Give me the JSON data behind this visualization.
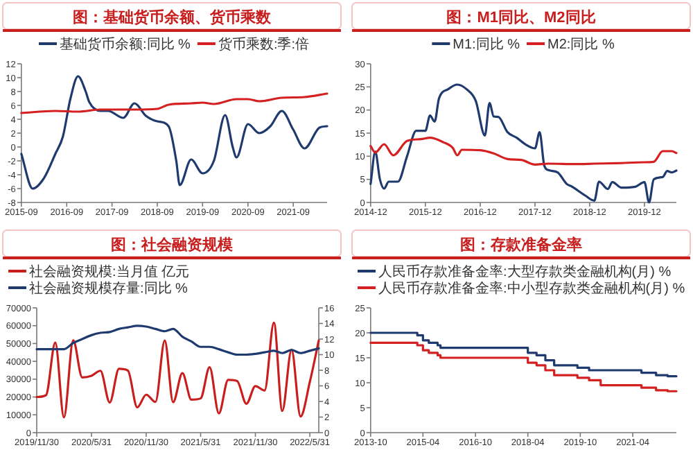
{
  "chart_data": [
    {
      "type": "line",
      "title": "图：基础货币余额、货币乘数",
      "legend": "top",
      "grid": false,
      "xlim": [
        "2015-09",
        "2022-06"
      ],
      "xticks": [
        {
          "value": "2015-09",
          "label": "2015-09"
        },
        {
          "value": "2016-09",
          "label": "2016-09"
        },
        {
          "value": "2017-09",
          "label": "2017-09"
        },
        {
          "value": "2018-09",
          "label": "2018-09"
        },
        {
          "value": "2019-09",
          "label": "2019-09"
        },
        {
          "value": "2020-09",
          "label": "2020-09"
        },
        {
          "value": "2021-09",
          "label": "2021-09"
        }
      ],
      "ylim": [
        -8,
        12
      ],
      "yticks": [
        -8,
        -6,
        -4,
        -2,
        0,
        2,
        4,
        6,
        8,
        10,
        12
      ],
      "series": [
        {
          "name": "基础货币余额:同比 %",
          "color": "#1f3a6e",
          "x": [
            "2015-09",
            "2015-12",
            "2016-03",
            "2016-06",
            "2016-08",
            "2016-10",
            "2016-12",
            "2017-02",
            "2017-03",
            "2017-06",
            "2017-08",
            "2017-12",
            "2018-03",
            "2018-06",
            "2018-09",
            "2018-12",
            "2019-02",
            "2019-03",
            "2019-06",
            "2019-09",
            "2019-12",
            "2020-03",
            "2020-05",
            "2020-06",
            "2020-09",
            "2020-12",
            "2021-03",
            "2021-06",
            "2021-09",
            "2021-12",
            "2022-04",
            "2022-06"
          ],
          "values": [
            -1,
            -6,
            -4.5,
            -1,
            1.5,
            7,
            10.2,
            8,
            6.5,
            5.2,
            5.2,
            4.2,
            6.3,
            4.5,
            3.7,
            3,
            -2,
            -5.5,
            -1.8,
            -3.8,
            -2,
            4.6,
            0,
            -1.5,
            3.3,
            2,
            3,
            5.2,
            2.5,
            -0.2,
            2.8,
            3
          ]
        },
        {
          "name": "货币乘数:季:倍",
          "color": "#d42020",
          "x": [
            "2015-09",
            "2016-06",
            "2016-12",
            "2017-06",
            "2018-03",
            "2018-09",
            "2018-12",
            "2019-06",
            "2019-09",
            "2019-12",
            "2020-06",
            "2020-09",
            "2020-12",
            "2021-06",
            "2021-12",
            "2022-06"
          ],
          "values": [
            4.9,
            5.2,
            5.1,
            5.4,
            5.4,
            5.5,
            6.1,
            6.3,
            6.4,
            6.2,
            6.9,
            6.9,
            6.6,
            7.1,
            7.2,
            7.7
          ]
        }
      ]
    },
    {
      "type": "line",
      "title": "图：M1同比、M2同比",
      "legend": "top",
      "grid": false,
      "xlim": [
        "2014-12",
        "2020-07"
      ],
      "xticks": [
        {
          "value": "2014-12",
          "label": "2014-12"
        },
        {
          "value": "2015-12",
          "label": "2015-12"
        },
        {
          "value": "2016-12",
          "label": "2016-12"
        },
        {
          "value": "2017-12",
          "label": "2017-12"
        },
        {
          "value": "2018-12",
          "label": "2018-12"
        },
        {
          "value": "2019-12",
          "label": "2019-12"
        }
      ],
      "ylim": [
        0,
        30
      ],
      "yticks": [
        0,
        5,
        10,
        15,
        20,
        25,
        30
      ],
      "series": [
        {
          "name": "M1:同比 %",
          "color": "#1f3a6e",
          "x": [
            "2014-12",
            "2015-01",
            "2015-02",
            "2015-03",
            "2015-04",
            "2015-06",
            "2015-08",
            "2015-10",
            "2015-12",
            "2016-01",
            "2016-02",
            "2016-03",
            "2016-05",
            "2016-07",
            "2016-09",
            "2016-11",
            "2017-01",
            "2017-02",
            "2017-03",
            "2017-04",
            "2017-06",
            "2017-08",
            "2017-10",
            "2017-12",
            "2018-01",
            "2018-02",
            "2018-03",
            "2018-05",
            "2018-07",
            "2018-08",
            "2018-11",
            "2019-01",
            "2019-02",
            "2019-04",
            "2019-05",
            "2019-07",
            "2019-10",
            "2019-12",
            "2020-01",
            "2020-02",
            "2020-04",
            "2020-05",
            "2020-06",
            "2020-07"
          ],
          "values": [
            4,
            11,
            5,
            3,
            4.5,
            4.5,
            10,
            15.5,
            15.5,
            18.8,
            17.5,
            22.5,
            24.5,
            25.5,
            24.5,
            22,
            14.5,
            21.5,
            18.6,
            18.5,
            15.2,
            14,
            12.5,
            11.7,
            15.2,
            8,
            7,
            6.5,
            4,
            3.5,
            1.5,
            0.4,
            4.5,
            2.9,
            4.4,
            3.2,
            3.4,
            4.4,
            0,
            5,
            5.5,
            6.8,
            6.5,
            6.9
          ]
        },
        {
          "name": "M2:同比 %",
          "color": "#d42020",
          "x": [
            "2014-12",
            "2015-01",
            "2015-03",
            "2015-05",
            "2015-08",
            "2015-11",
            "2016-01",
            "2016-04",
            "2016-06",
            "2016-07",
            "2016-08",
            "2016-12",
            "2017-03",
            "2017-06",
            "2017-09",
            "2017-12",
            "2018-03",
            "2018-09",
            "2019-01",
            "2019-06",
            "2019-12",
            "2020-02",
            "2020-04",
            "2020-06",
            "2020-07"
          ],
          "values": [
            12.2,
            10.8,
            12.6,
            10.2,
            13.3,
            13.7,
            14,
            13,
            11.8,
            10.2,
            11.4,
            11.3,
            10.6,
            9.4,
            9.2,
            8.2,
            8.4,
            8.3,
            8.4,
            8.5,
            8.7,
            8.8,
            11.1,
            11.1,
            10.7
          ]
        }
      ]
    },
    {
      "type": "line",
      "title": "图：社会融资规模",
      "legend": "top",
      "grid": false,
      "xlim": [
        "2019-11-30",
        "2022-06-30"
      ],
      "xticks": [
        {
          "value": "2019-11-30",
          "label": "2019/11/30"
        },
        {
          "value": "2020-05-31",
          "label": "2020/5/31"
        },
        {
          "value": "2020-11-30",
          "label": "2020/11/30"
        },
        {
          "value": "2021-05-31",
          "label": "2021/5/31"
        },
        {
          "value": "2021-11-30",
          "label": "2021/11/30"
        },
        {
          "value": "2022-05-31",
          "label": "2022/5/31"
        }
      ],
      "ylim": [
        0,
        70000
      ],
      "yticks": [
        0,
        10000,
        20000,
        30000,
        40000,
        50000,
        60000,
        70000
      ],
      "y2lim": [
        0,
        16
      ],
      "y2ticks": [
        0,
        2,
        4,
        6,
        8,
        10,
        12,
        14,
        16
      ],
      "x": [
        "2019-11-30",
        "2019-12-31",
        "2020-01-31",
        "2020-02-29",
        "2020-03-31",
        "2020-04-30",
        "2020-05-31",
        "2020-06-30",
        "2020-07-31",
        "2020-08-31",
        "2020-09-30",
        "2020-10-31",
        "2020-11-30",
        "2020-12-31",
        "2021-01-31",
        "2021-02-28",
        "2021-03-31",
        "2021-04-30",
        "2021-05-31",
        "2021-06-30",
        "2021-07-31",
        "2021-08-31",
        "2021-09-30",
        "2021-10-31",
        "2021-11-30",
        "2021-12-31",
        "2022-01-31",
        "2022-02-28",
        "2022-03-31",
        "2022-04-30",
        "2022-05-31",
        "2022-06-30"
      ],
      "series": [
        {
          "name": "社会融资规模:当月值 亿元",
          "color": "#c81e1e",
          "values": [
            20000,
            21000,
            50500,
            8600,
            51800,
            31000,
            31900,
            34700,
            16900,
            35800,
            34800,
            14200,
            21300,
            17200,
            51700,
            17100,
            33400,
            18500,
            19200,
            36700,
            10800,
            29600,
            29000,
            16200,
            26100,
            23700,
            61700,
            12200,
            46500,
            9100,
            28400,
            51700
          ]
        },
        {
          "name": "社会融资规模存量:同比 %",
          "color": "#1f3a6e",
          "axis": "y2",
          "values": [
            10.7,
            10.7,
            10.7,
            10.7,
            11.5,
            12,
            12.5,
            12.8,
            12.9,
            13.3,
            13.5,
            13.7,
            13.6,
            13.3,
            13,
            13.3,
            12.3,
            11.7,
            11,
            11,
            10.7,
            10.3,
            10,
            10,
            10.1,
            10.3,
            10.5,
            10.2,
            10.6,
            10.2,
            10.5,
            10.8
          ]
        }
      ]
    },
    {
      "type": "step",
      "title": "图：存款准备金率",
      "legend": "top",
      "grid": false,
      "xlim": [
        "2013-10",
        "2022-07"
      ],
      "xticks": [
        {
          "value": "2013-10",
          "label": "2013-10"
        },
        {
          "value": "2015-04",
          "label": "2015-04"
        },
        {
          "value": "2016-10",
          "label": "2016-10"
        },
        {
          "value": "2018-04",
          "label": "2018-04"
        },
        {
          "value": "2019-10",
          "label": "2019-10"
        },
        {
          "value": "2021-04",
          "label": "2021-04"
        }
      ],
      "ylim": [
        0,
        25
      ],
      "yticks": [
        0,
        5,
        10,
        15,
        20,
        25
      ],
      "series": [
        {
          "name": "人民币存款准备金率:大型存款类金融机构(月) %",
          "color": "#1f3a6e",
          "x": [
            "2013-10",
            "2015-02",
            "2015-04",
            "2015-06",
            "2015-09",
            "2015-10",
            "2018-04",
            "2018-07",
            "2018-10",
            "2019-01",
            "2019-09",
            "2020-01",
            "2021-07",
            "2021-12",
            "2022-04",
            "2022-07"
          ],
          "values": [
            20,
            19.5,
            18.5,
            18,
            17.5,
            17,
            16,
            15.5,
            14.5,
            13.5,
            13,
            12.5,
            12,
            11.5,
            11.3,
            11.3
          ]
        },
        {
          "name": "人民币存款准备金率:中小型存款类金融机构(月) %",
          "color": "#d42020",
          "x": [
            "2013-10",
            "2015-02",
            "2015-04",
            "2015-06",
            "2015-09",
            "2015-10",
            "2018-04",
            "2018-07",
            "2018-10",
            "2019-01",
            "2019-09",
            "2020-01",
            "2020-05",
            "2021-07",
            "2021-12",
            "2022-04",
            "2022-07"
          ],
          "values": [
            18,
            17.5,
            16.5,
            16,
            15.5,
            15,
            14,
            13.5,
            12.5,
            11.5,
            11,
            10.5,
            9.5,
            9,
            8.5,
            8.3,
            8.3
          ]
        }
      ]
    }
  ]
}
